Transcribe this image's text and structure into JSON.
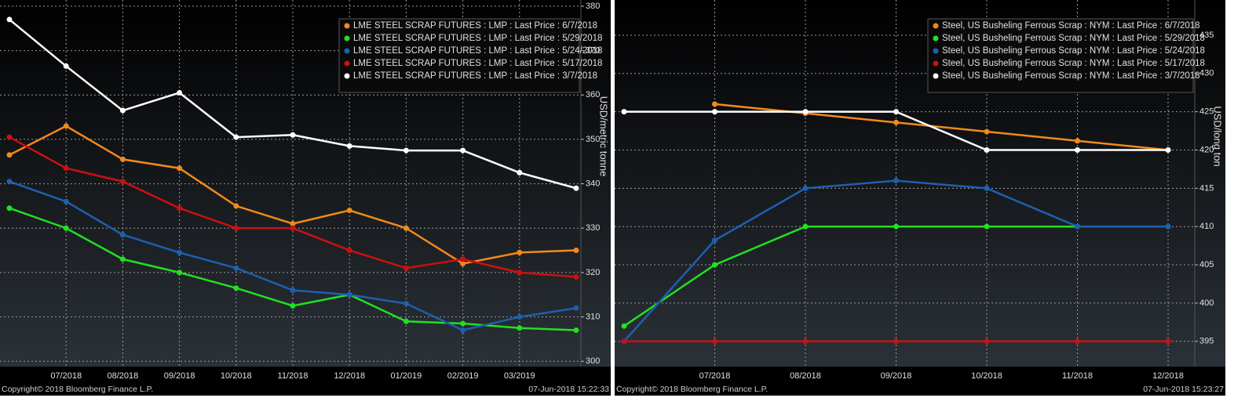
{
  "chart_data": [
    {
      "type": "line",
      "y_label": "USD/metric tonne",
      "source": "Copyright© 2018 Bloomberg Finance L.P.",
      "timestamp": "07-Jun-2018 15:22:33",
      "categories": [
        null,
        "07/2018",
        "08/2018",
        "09/2018",
        "10/2018",
        "11/2018",
        "12/2018",
        "01/2019",
        "02/2019",
        "03/2019",
        null
      ],
      "ylim": [
        298.8,
        381.4
      ],
      "yticks": [
        300,
        310,
        320,
        330,
        340,
        350,
        360,
        370,
        380
      ],
      "grid": true,
      "legend": "upper right",
      "series": [
        {
          "name": "LME STEEL SCRAP FUTURES : LMP : Last Price : 6/7/2018",
          "color": "#f08a1c",
          "values": [
            346.5,
            353,
            345.5,
            343.5,
            335,
            331,
            334,
            330,
            322,
            324.5,
            325
          ]
        },
        {
          "name": "LME STEEL SCRAP FUTURES : LMP : Last Price : 5/29/2018",
          "color": "#22e022",
          "values": [
            334.5,
            330,
            323,
            320,
            316.5,
            312.5,
            315,
            309,
            308.5,
            307.5,
            307
          ]
        },
        {
          "name": "LME STEEL SCRAP FUTURES : LMP : Last Price : 5/24/2018",
          "color": "#1f5fb0",
          "values": [
            340.5,
            336,
            328.5,
            324.5,
            321,
            316,
            315,
            313,
            307,
            310,
            312
          ]
        },
        {
          "name": "LME STEEL SCRAP FUTURES : LMP : Last Price : 5/17/2018",
          "color": "#cc1010",
          "values": [
            350.5,
            343.5,
            340.5,
            334.5,
            330,
            330,
            325,
            321,
            323,
            320,
            319
          ]
        },
        {
          "name": "LME STEEL SCRAP FUTURES : LMP : Last Price : 3/7/2018",
          "color": "#ffffff",
          "values": [
            377,
            366.5,
            356.5,
            360.5,
            350.5,
            351,
            348.5,
            347.5,
            347.5,
            342.5,
            339
          ]
        }
      ]
    },
    {
      "type": "line",
      "y_label": "USD/long ton",
      "source": "Copyright© 2018 Bloomberg Finance L.P.",
      "timestamp": "07-Jun-2018 15:23:27",
      "categories": [
        null,
        "07/2018",
        "08/2018",
        "09/2018",
        "10/2018",
        "11/2018",
        "12/2018"
      ],
      "ylim": [
        391.7,
        439.6
      ],
      "yticks": [
        395,
        400,
        405,
        410,
        415,
        420,
        425,
        430,
        435
      ],
      "grid": true,
      "legend": "upper right",
      "series": [
        {
          "name": "Steel, US Busheling Ferrous Scrap : NYM : Last Price : 6/7/2018",
          "color": "#f08a1c",
          "values": [
            null,
            426,
            424.8,
            423.6,
            422.4,
            421.2,
            420
          ]
        },
        {
          "name": "Steel, US Busheling Ferrous Scrap : NYM : Last Price : 5/29/2018",
          "color": "#22e022",
          "values": [
            397,
            405,
            410,
            410,
            410,
            410,
            410
          ]
        },
        {
          "name": "Steel, US Busheling Ferrous Scrap : NYM : Last Price : 5/24/2018",
          "color": "#1f5fb0",
          "values": [
            395,
            408.2,
            415,
            416,
            415,
            410,
            410
          ]
        },
        {
          "name": "Steel, US Busheling Ferrous Scrap : NYM : Last Price : 5/17/2018",
          "color": "#cc1010",
          "values": [
            395,
            395,
            395,
            395,
            395,
            395,
            395
          ]
        },
        {
          "name": "Steel, US Busheling Ferrous Scrap : NYM : Last Price : 3/7/2018",
          "color": "#ffffff",
          "values": [
            425,
            425,
            425,
            425,
            420,
            420,
            420
          ]
        }
      ]
    }
  ]
}
